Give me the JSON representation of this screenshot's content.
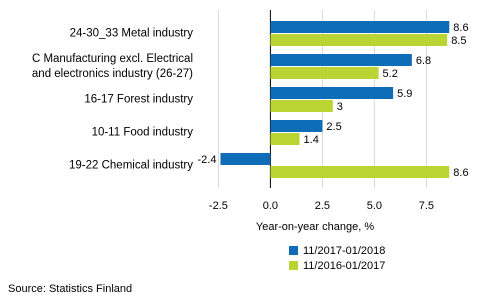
{
  "chart_data": {
    "type": "bar",
    "orientation": "horizontal",
    "x_label": "Year-on-year change, %",
    "source": "Source: Statistics Finland",
    "categories": [
      "24-30_33 Metal industry",
      "C Manufacturing excl. Electrical and electronics industry (26-27)",
      "16-17 Forest industry",
      "10-11 Food industry",
      "19-22 Chemical industry"
    ],
    "series": [
      {
        "name": "11/2017-01/2018",
        "color": "#0f6cb6",
        "values": [
          8.6,
          6.8,
          5.9,
          2.5,
          -2.4
        ]
      },
      {
        "name": "11/2016-01/2017",
        "color": "#b9d433",
        "values": [
          8.5,
          5.2,
          3.0,
          1.4,
          8.6
        ]
      }
    ],
    "xlim": [
      -3,
      9.5
    ],
    "xticks": [
      -2.5,
      {
        "value": 0,
        "label": "0.0"
      },
      2.5,
      {
        "value": 5,
        "label": "5.0"
      },
      7.5
    ],
    "grid": true,
    "legend": "bottom"
  }
}
